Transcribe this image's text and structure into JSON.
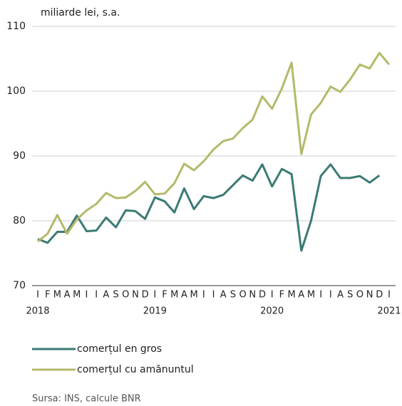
{
  "chart_data": {
    "type": "line",
    "title": "miliarde lei, s.a.",
    "categories": [
      "I",
      "F",
      "M",
      "A",
      "M",
      "I",
      "I",
      "A",
      "S",
      "O",
      "N",
      "D",
      "I",
      "F",
      "M",
      "A",
      "M",
      "I",
      "I",
      "A",
      "S",
      "O",
      "N",
      "D",
      "I",
      "F",
      "M",
      "A",
      "M",
      "I",
      "I",
      "A",
      "S",
      "O",
      "N",
      "D",
      "I"
    ],
    "year_labels": [
      "2018",
      "2019",
      "2020",
      "2021"
    ],
    "series": [
      {
        "name": "comerțul en gros",
        "color": "#3b7b74",
        "values": [
          77.2,
          76.6,
          78.3,
          78.3,
          80.8,
          78.4,
          78.5,
          80.5,
          79.0,
          81.6,
          81.5,
          80.3,
          83.6,
          83.0,
          81.3,
          85.0,
          81.8,
          83.8,
          83.5,
          84.0,
          85.5,
          87.0,
          86.2,
          88.7,
          85.3,
          88.0,
          87.2,
          75.4,
          80.0,
          86.9,
          88.7,
          86.6,
          86.6,
          86.9,
          85.9,
          87.0,
          null
        ]
      },
      {
        "name": "comerțul cu amănuntul",
        "color": "#b5b96b",
        "values": [
          76.8,
          78.0,
          80.9,
          78.0,
          80.2,
          81.6,
          82.6,
          84.3,
          83.5,
          83.6,
          84.6,
          86.0,
          84.1,
          84.2,
          85.8,
          88.8,
          87.8,
          89.2,
          91.0,
          92.3,
          92.7,
          94.3,
          95.6,
          99.2,
          97.3,
          100.4,
          104.4,
          90.3,
          96.4,
          98.2,
          100.7,
          99.9,
          101.8,
          104.1,
          103.5,
          105.9,
          104.1
        ]
      }
    ],
    "ylim": [
      70,
      110
    ],
    "yticks": [
      70,
      80,
      90,
      100,
      110
    ],
    "grid": true,
    "source": "Sursa: INS, calcule BNR"
  }
}
